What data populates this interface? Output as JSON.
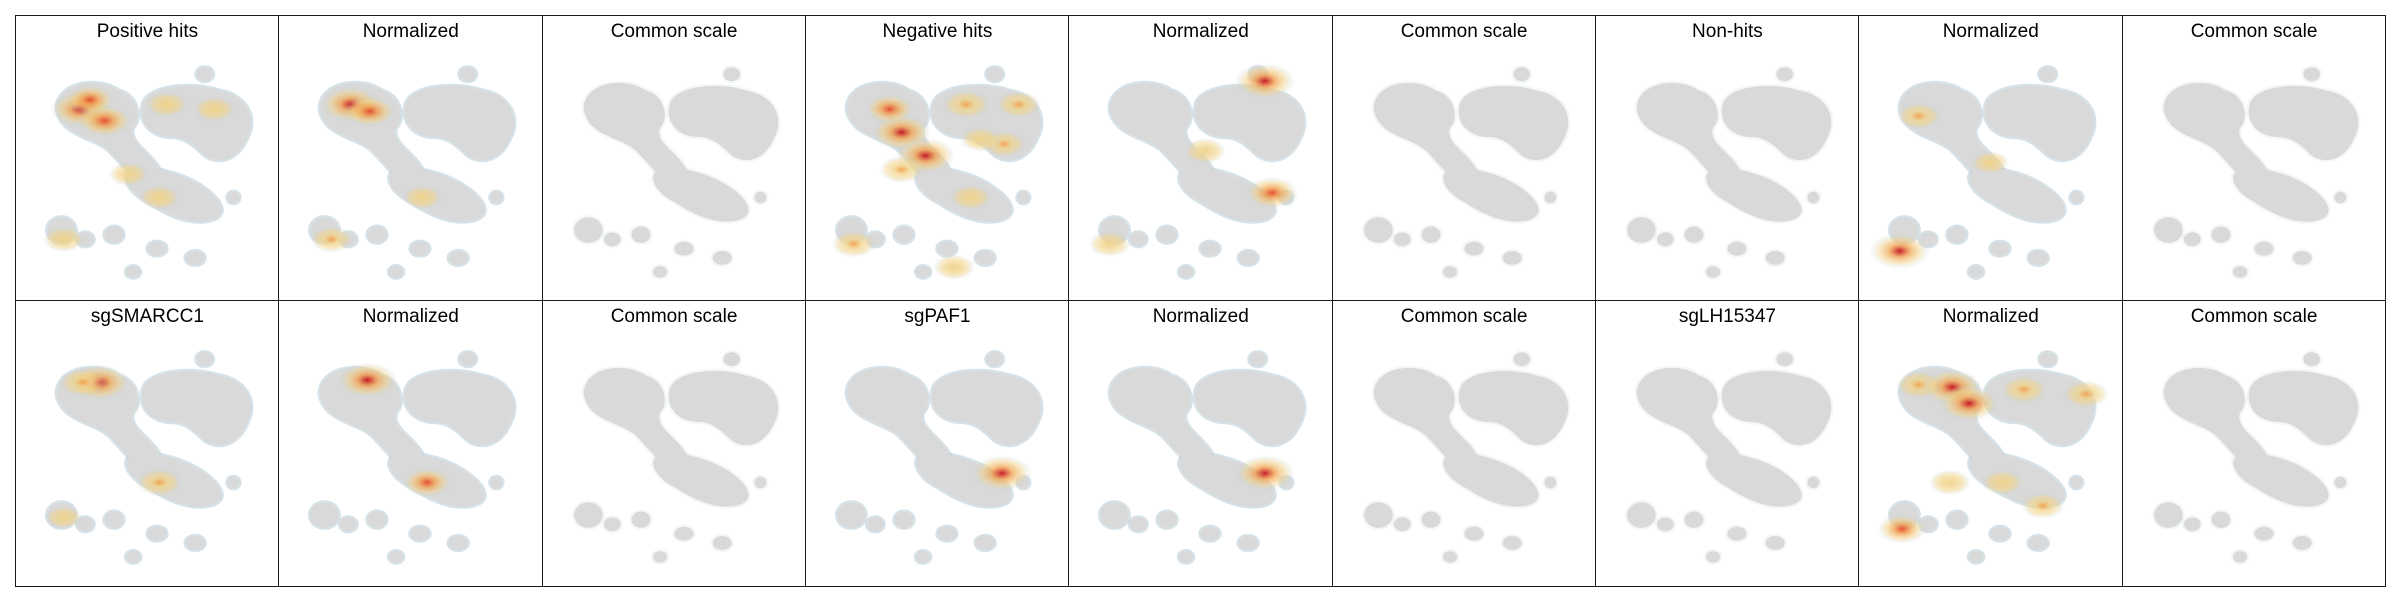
{
  "figure": {
    "colors": {
      "embedding": "#d9d9d9",
      "halo": "#b7cad6",
      "low": "#f0d389",
      "mid": "#f2a24e",
      "high": "#e4472a",
      "peak": "#c4101a",
      "frame": "#1a1a1a"
    }
  },
  "chart_data": {
    "type": "heatmap",
    "description_of_marks": "kernel density hotspots over a shared grey cell embedding; intensity 0-1",
    "rows": [
      {
        "panels": [
          {
            "title": "Positive hits",
            "scale": "raw",
            "hotspots": [
              {
                "x": 0.22,
                "y": 0.22,
                "intensity": 1.0
              },
              {
                "x": 0.32,
                "y": 0.27,
                "intensity": 0.8
              },
              {
                "x": 0.26,
                "y": 0.18,
                "intensity": 0.6
              },
              {
                "x": 0.58,
                "y": 0.2,
                "intensity": 0.35
              },
              {
                "x": 0.78,
                "y": 0.22,
                "intensity": 0.35
              },
              {
                "x": 0.55,
                "y": 0.6,
                "intensity": 0.3
              },
              {
                "x": 0.15,
                "y": 0.78,
                "intensity": 0.35
              },
              {
                "x": 0.42,
                "y": 0.5,
                "intensity": 0.25
              }
            ]
          },
          {
            "title": "Normalized",
            "scale": "normalized",
            "hotspots": [
              {
                "x": 0.25,
                "y": 0.2,
                "intensity": 1.0
              },
              {
                "x": 0.33,
                "y": 0.23,
                "intensity": 0.7
              },
              {
                "x": 0.17,
                "y": 0.78,
                "intensity": 0.4
              },
              {
                "x": 0.55,
                "y": 0.6,
                "intensity": 0.25
              }
            ]
          },
          {
            "title": "Common scale",
            "scale": "common",
            "hotspots": []
          },
          {
            "title": "Negative hits",
            "scale": "raw",
            "hotspots": [
              {
                "x": 0.35,
                "y": 0.32,
                "intensity": 1.0
              },
              {
                "x": 0.45,
                "y": 0.42,
                "intensity": 1.0
              },
              {
                "x": 0.3,
                "y": 0.22,
                "intensity": 0.6
              },
              {
                "x": 0.62,
                "y": 0.2,
                "intensity": 0.55
              },
              {
                "x": 0.84,
                "y": 0.2,
                "intensity": 0.45
              },
              {
                "x": 0.35,
                "y": 0.48,
                "intensity": 0.45
              },
              {
                "x": 0.15,
                "y": 0.8,
                "intensity": 0.45
              },
              {
                "x": 0.78,
                "y": 0.37,
                "intensity": 0.4
              },
              {
                "x": 0.57,
                "y": 0.9,
                "intensity": 0.35
              },
              {
                "x": 0.64,
                "y": 0.6,
                "intensity": 0.35
              },
              {
                "x": 0.68,
                "y": 0.35,
                "intensity": 0.3
              }
            ]
          },
          {
            "title": "Normalized",
            "scale": "normalized",
            "hotspots": [
              {
                "x": 0.77,
                "y": 0.1,
                "intensity": 1.0
              },
              {
                "x": 0.8,
                "y": 0.58,
                "intensity": 0.75
              },
              {
                "x": 0.52,
                "y": 0.4,
                "intensity": 0.35
              },
              {
                "x": 0.12,
                "y": 0.8,
                "intensity": 0.35
              }
            ]
          },
          {
            "title": "Common scale",
            "scale": "common",
            "hotspots": []
          },
          {
            "title": "Non-hits",
            "scale": "raw",
            "hotspots": []
          },
          {
            "title": "Normalized",
            "scale": "normalized",
            "hotspots": [
              {
                "x": 0.12,
                "y": 0.83,
                "intensity": 1.0
              },
              {
                "x": 0.2,
                "y": 0.25,
                "intensity": 0.45
              },
              {
                "x": 0.5,
                "y": 0.45,
                "intensity": 0.2
              }
            ]
          },
          {
            "title": "Common scale",
            "scale": "common",
            "hotspots": []
          }
        ]
      },
      {
        "panels": [
          {
            "title": "sgSMARCC1",
            "scale": "raw",
            "hotspots": [
              {
                "x": 0.3,
                "y": 0.17,
                "intensity": 1.0
              },
              {
                "x": 0.23,
                "y": 0.17,
                "intensity": 0.55
              },
              {
                "x": 0.55,
                "y": 0.6,
                "intensity": 0.5
              },
              {
                "x": 0.15,
                "y": 0.75,
                "intensity": 0.2
              }
            ]
          },
          {
            "title": "Normalized",
            "scale": "normalized",
            "hotspots": [
              {
                "x": 0.32,
                "y": 0.16,
                "intensity": 1.0
              },
              {
                "x": 0.57,
                "y": 0.6,
                "intensity": 0.6
              }
            ]
          },
          {
            "title": "Common scale",
            "scale": "common",
            "hotspots": []
          },
          {
            "title": "sgPAF1",
            "scale": "raw",
            "hotspots": [
              {
                "x": 0.77,
                "y": 0.56,
                "intensity": 1.0
              }
            ]
          },
          {
            "title": "Normalized",
            "scale": "normalized",
            "hotspots": [
              {
                "x": 0.77,
                "y": 0.56,
                "intensity": 1.0
              }
            ]
          },
          {
            "title": "Common scale",
            "scale": "common",
            "hotspots": []
          },
          {
            "title": "sgLH15347",
            "scale": "raw",
            "hotspots": []
          },
          {
            "title": "Normalized",
            "scale": "normalized",
            "hotspots": [
              {
                "x": 0.2,
                "y": 0.18,
                "intensity": 0.5
              },
              {
                "x": 0.34,
                "y": 0.19,
                "intensity": 1.0
              },
              {
                "x": 0.41,
                "y": 0.26,
                "intensity": 1.0
              },
              {
                "x": 0.64,
                "y": 0.2,
                "intensity": 0.5
              },
              {
                "x": 0.9,
                "y": 0.22,
                "intensity": 0.5
              },
              {
                "x": 0.33,
                "y": 0.6,
                "intensity": 0.35
              },
              {
                "x": 0.55,
                "y": 0.6,
                "intensity": 0.35
              },
              {
                "x": 0.72,
                "y": 0.7,
                "intensity": 0.4
              },
              {
                "x": 0.13,
                "y": 0.8,
                "intensity": 0.6
              }
            ]
          },
          {
            "title": "Common scale",
            "scale": "common",
            "hotspots": []
          }
        ]
      }
    ]
  }
}
